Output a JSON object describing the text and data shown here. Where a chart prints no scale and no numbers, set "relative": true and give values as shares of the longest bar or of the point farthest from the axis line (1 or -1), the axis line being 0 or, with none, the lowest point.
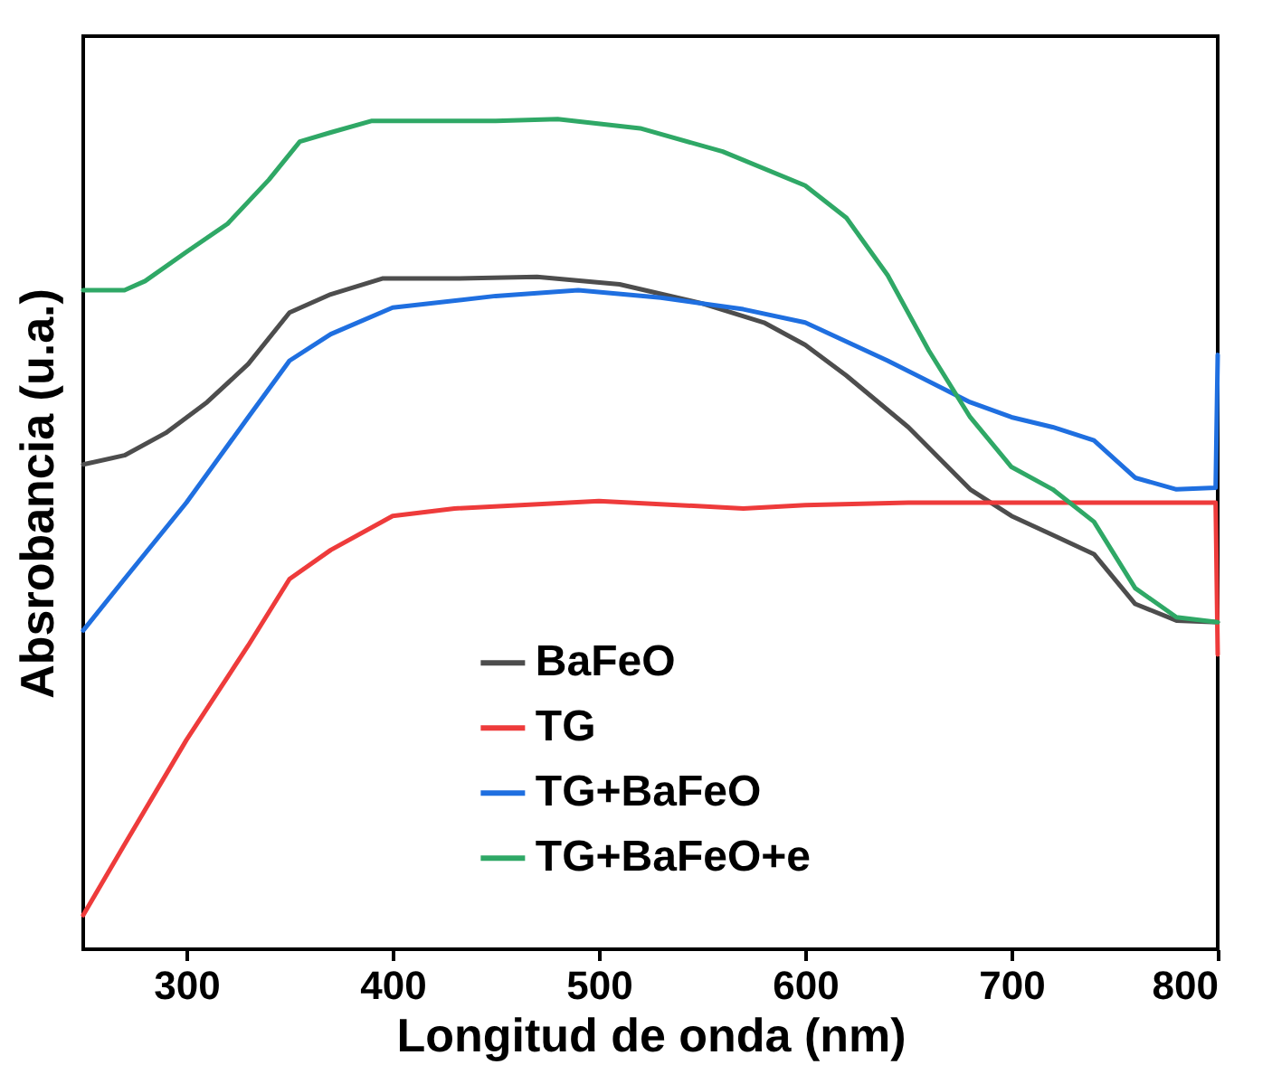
{
  "chart_data": {
    "type": "line",
    "xlabel": "Longitud de onda (nm)",
    "ylabel": "Absrobancia (u.a.)",
    "relative": true,
    "xlim": [
      250,
      800
    ],
    "xticks": [
      300,
      400,
      500,
      600,
      700,
      800
    ],
    "legend": "bottom",
    "grid": false,
    "line_style": "solid",
    "marker": "none",
    "series": [
      {
        "name": "BaFeO",
        "color": "#4d4d4d",
        "x": [
          250,
          270,
          290,
          310,
          330,
          350,
          370,
          395,
          430,
          470,
          510,
          550,
          580,
          600,
          620,
          650,
          680,
          700,
          720,
          740,
          760,
          780,
          800
        ],
        "values": [
          0.584,
          0.595,
          0.622,
          0.659,
          0.705,
          0.767,
          0.789,
          0.808,
          0.808,
          0.81,
          0.801,
          0.778,
          0.755,
          0.728,
          0.691,
          0.629,
          0.554,
          0.522,
          0.499,
          0.476,
          0.416,
          0.396,
          0.394
        ]
      },
      {
        "name": "TG",
        "color": "#ee3b3b",
        "x": [
          250,
          270,
          300,
          330,
          350,
          370,
          400,
          430,
          500,
          570,
          600,
          650,
          700,
          799,
          800
        ],
        "values": [
          0.041,
          0.126,
          0.252,
          0.366,
          0.446,
          0.481,
          0.522,
          0.531,
          0.54,
          0.531,
          0.535,
          0.538,
          0.538,
          0.538,
          0.355
        ]
      },
      {
        "name": "TG+BaFeO",
        "color": "#1f6fe0",
        "x": [
          250,
          270,
          300,
          330,
          350,
          370,
          400,
          450,
          490,
          530,
          570,
          600,
          640,
          680,
          700,
          720,
          740,
          760,
          780,
          799,
          800
        ],
        "values": [
          0.384,
          0.446,
          0.538,
          0.641,
          0.709,
          0.741,
          0.773,
          0.787,
          0.794,
          0.785,
          0.771,
          0.755,
          0.709,
          0.659,
          0.641,
          0.629,
          0.613,
          0.568,
          0.554,
          0.556,
          0.716
        ]
      },
      {
        "name": "TG+BaFeO+e",
        "color": "#2fa866",
        "x": [
          250,
          270,
          280,
          300,
          320,
          340,
          355,
          370,
          390,
          420,
          450,
          480,
          520,
          560,
          600,
          620,
          640,
          660,
          680,
          700,
          720,
          740,
          760,
          780,
          800
        ],
        "values": [
          0.794,
          0.794,
          0.805,
          0.84,
          0.874,
          0.927,
          0.973,
          0.984,
          0.998,
          0.998,
          0.998,
          1.0,
          0.989,
          0.961,
          0.92,
          0.881,
          0.812,
          0.721,
          0.641,
          0.581,
          0.554,
          0.515,
          0.435,
          0.4,
          0.394
        ]
      }
    ]
  }
}
